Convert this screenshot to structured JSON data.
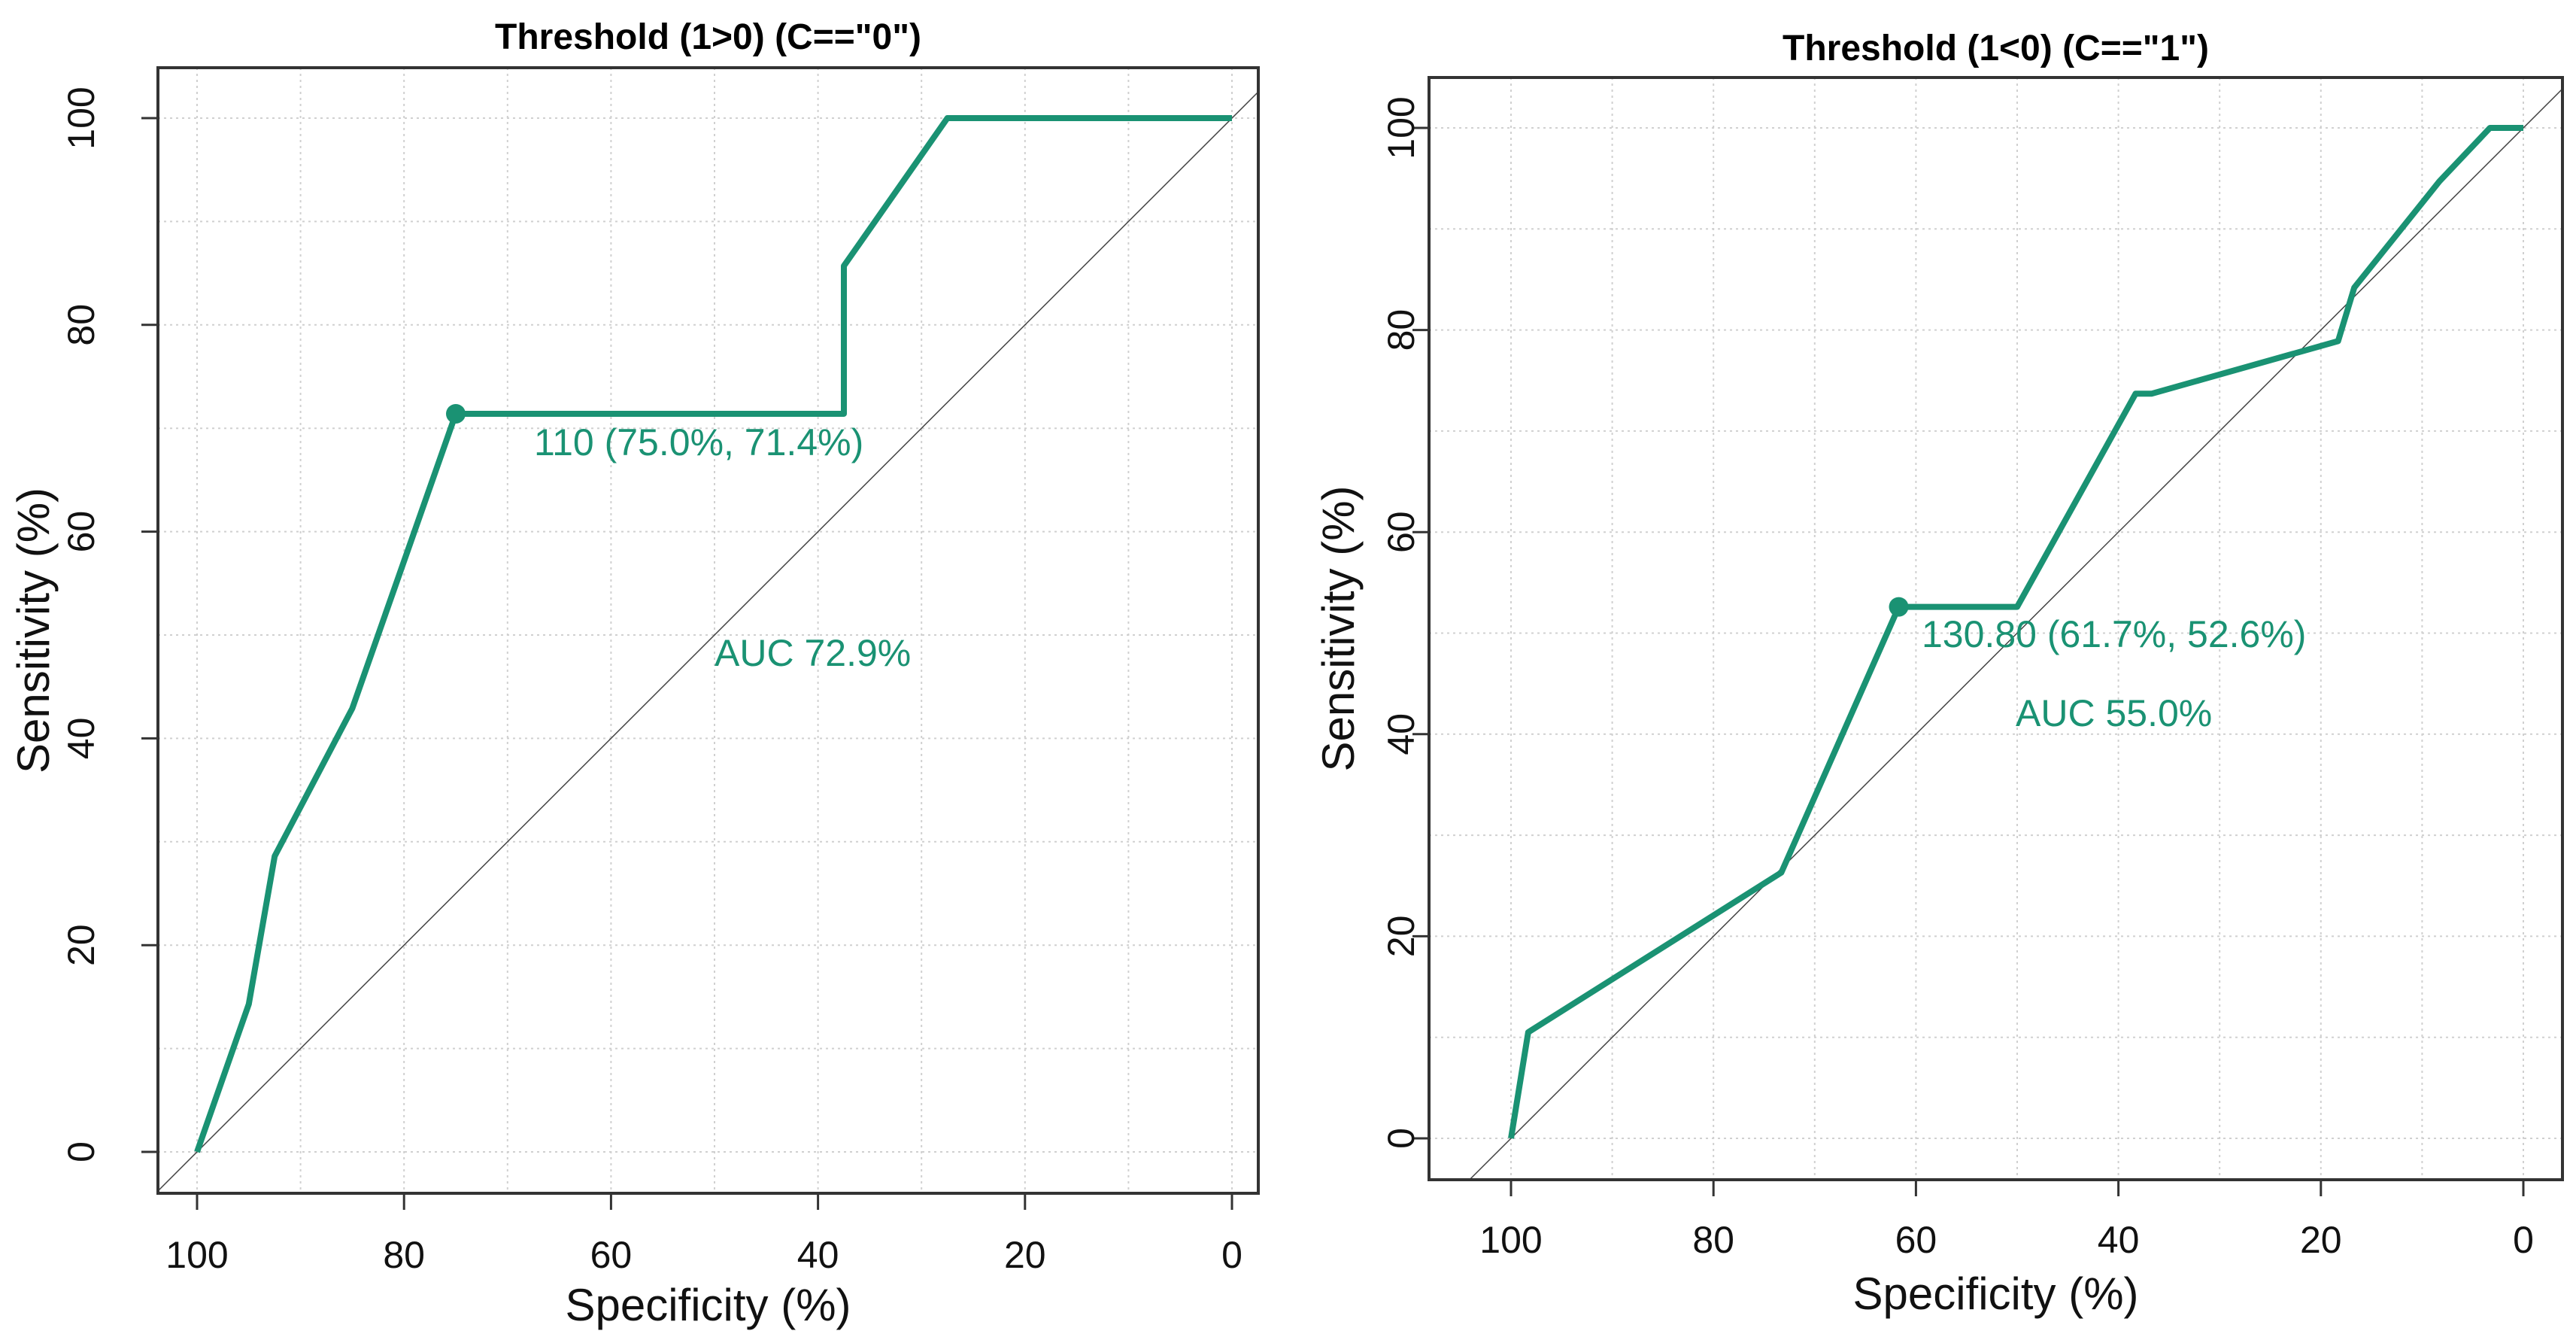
{
  "chart_data": [
    {
      "type": "line",
      "title": "Threshold (1>0) (C==\"0\")",
      "xlabel": "Specificity (%)",
      "ylabel": "Sensitivity (%)",
      "xlim": [
        100,
        0
      ],
      "ylim": [
        0,
        100
      ],
      "x_reversed": true,
      "xticks": [
        "100",
        "80",
        "60",
        "40",
        "20",
        "0"
      ],
      "yticks": [
        "0",
        "20",
        "40",
        "60",
        "80",
        "100"
      ],
      "grid": true,
      "diagonal": true,
      "color": "#1a9273",
      "x": [
        100,
        95,
        92.5,
        85,
        75,
        37.5,
        37.5,
        27.5,
        0
      ],
      "y": [
        0,
        14.3,
        28.6,
        42.9,
        71.4,
        71.4,
        85.7,
        100,
        100
      ],
      "best_point": {
        "x": 75.0,
        "y": 71.4,
        "label": "110 (75.0%, 71.4%)"
      },
      "auc_label": "AUC  72.9%"
    },
    {
      "type": "line",
      "title": "Threshold (1<0) (C==\"1\")",
      "xlabel": "Specificity (%)",
      "ylabel": "Sensitivity (%)",
      "xlim": [
        100,
        0
      ],
      "ylim": [
        0,
        100
      ],
      "x_reversed": true,
      "xticks": [
        "100",
        "80",
        "60",
        "40",
        "20",
        "0"
      ],
      "yticks": [
        "0",
        "20",
        "40",
        "60",
        "80",
        "100"
      ],
      "grid": true,
      "diagonal": true,
      "color": "#1a9273",
      "x": [
        100,
        98.3,
        73.3,
        61.7,
        50,
        38.3,
        36.7,
        18.3,
        16.7,
        8.3,
        3.3,
        0
      ],
      "y": [
        0,
        10.5,
        26.3,
        52.6,
        52.6,
        73.7,
        73.7,
        78.9,
        84.2,
        94.7,
        100,
        100
      ],
      "best_point": {
        "x": 61.7,
        "y": 52.6,
        "label": "130.80 (61.7%, 52.6%)"
      },
      "auc_label": "AUC  55.0%"
    }
  ]
}
